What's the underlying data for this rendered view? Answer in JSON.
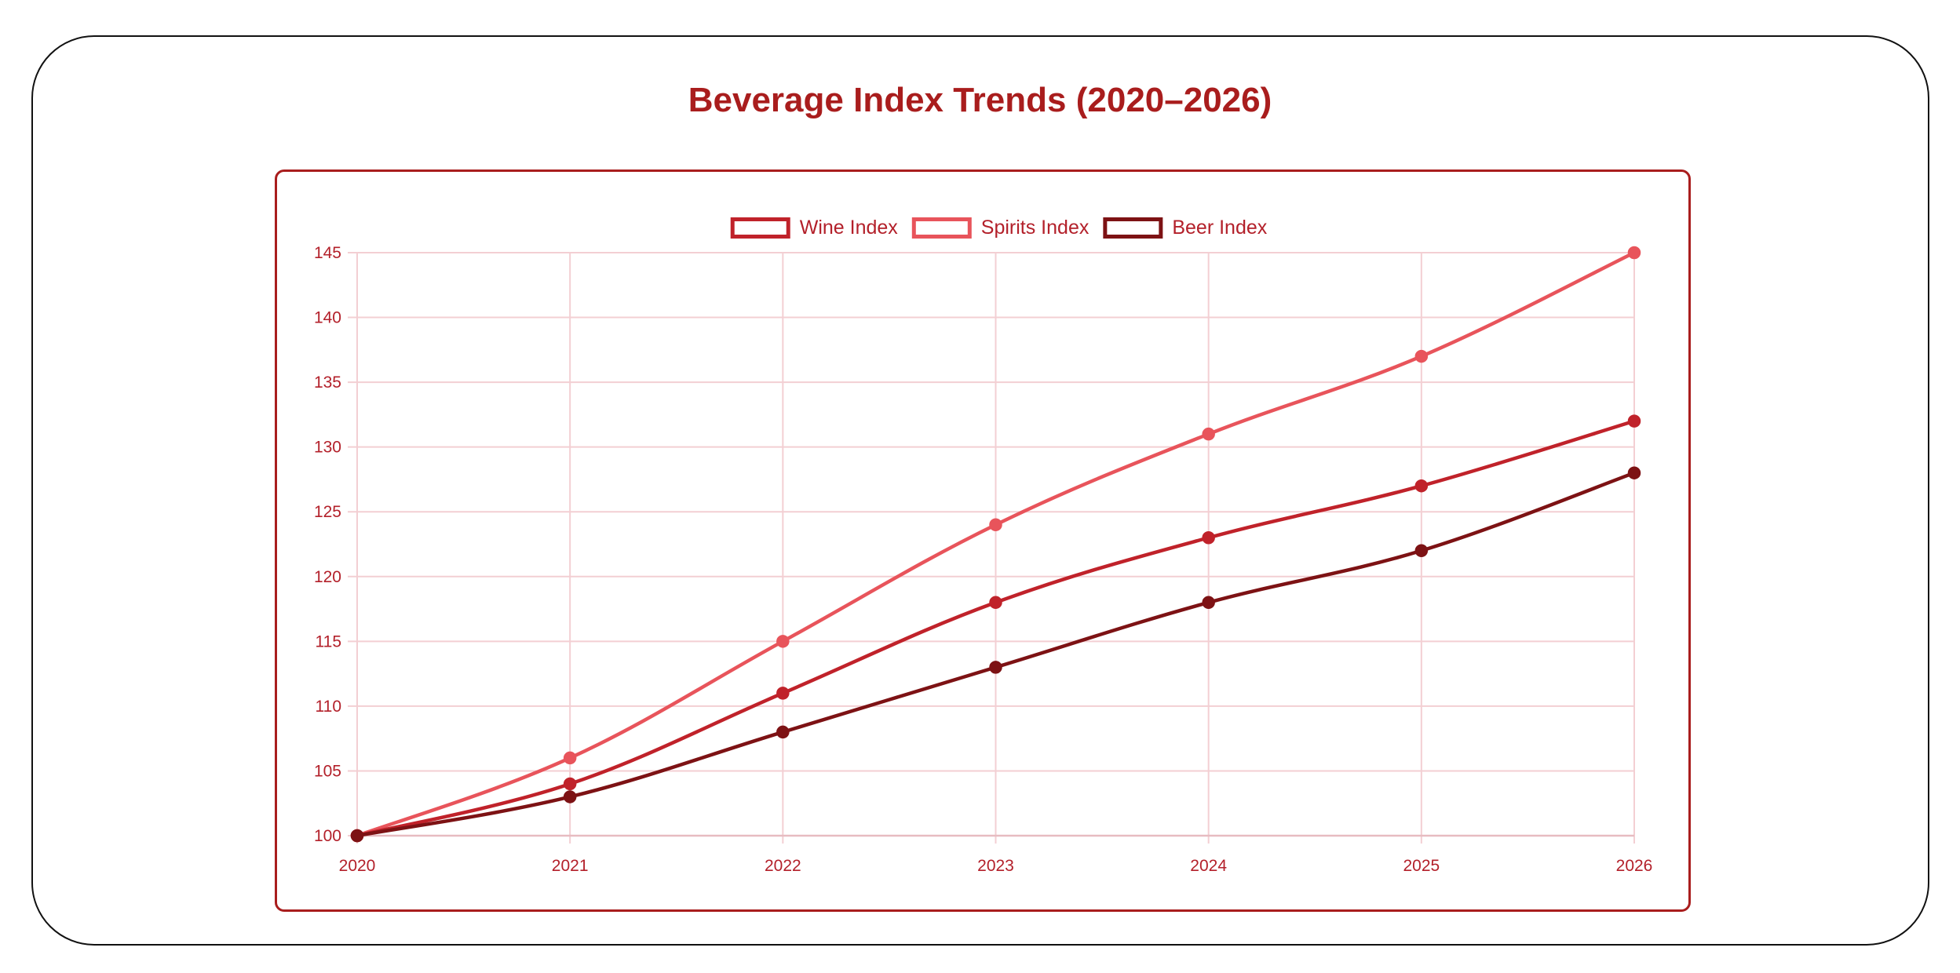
{
  "title": "Beverage Index Trends (2020–2026)",
  "colors": {
    "title": "#a91d1d",
    "panel_border": "#a91d1d",
    "grid": "#f3cfd3",
    "tick_text": "#b3202a"
  },
  "chart_data": {
    "type": "line",
    "title": "Beverage Index Trends (2020–2026)",
    "xlabel": "",
    "ylabel": "",
    "categories": [
      "2020",
      "2021",
      "2022",
      "2023",
      "2024",
      "2025",
      "2026"
    ],
    "yticks": [
      100,
      105,
      110,
      115,
      120,
      125,
      130,
      135,
      140,
      145
    ],
    "ylim": [
      100,
      145
    ],
    "grid": true,
    "legend_position": "top",
    "series": [
      {
        "name": "Wine Index",
        "color": "#c0222a",
        "values": [
          100,
          104,
          111,
          118,
          123,
          127,
          132
        ]
      },
      {
        "name": "Spirits Index",
        "color": "#e8545b",
        "values": [
          100,
          106,
          115,
          124,
          131,
          137,
          145
        ]
      },
      {
        "name": "Beer Index",
        "color": "#7d1214",
        "values": [
          100,
          103,
          108,
          113,
          118,
          122,
          128
        ]
      }
    ]
  }
}
